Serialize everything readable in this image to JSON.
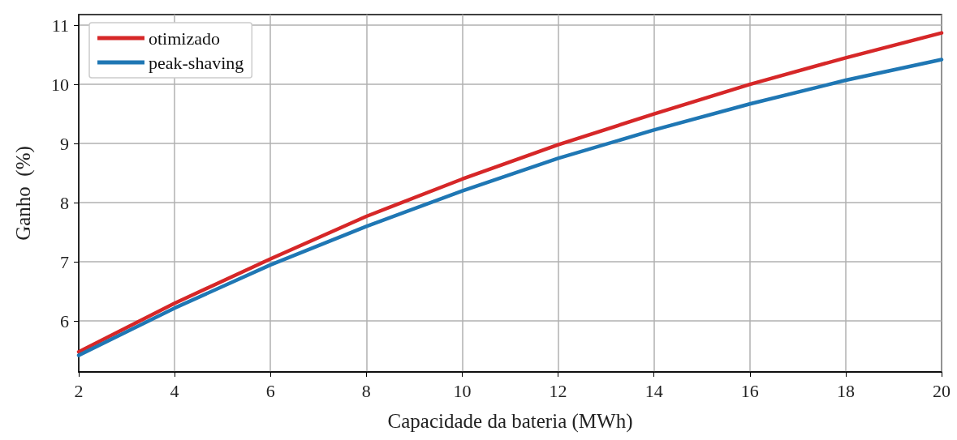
{
  "chart_data": {
    "type": "line",
    "xlabel": "Capacidade da bateria (MWh)",
    "ylabel": "Ganho  (%)",
    "x": [
      2,
      4,
      6,
      8,
      10,
      12,
      14,
      16,
      18,
      20
    ],
    "series": [
      {
        "name": "otimizado",
        "color": "#d62728",
        "values": [
          5.48,
          6.3,
          7.05,
          7.77,
          8.4,
          8.98,
          9.5,
          10.0,
          10.45,
          10.87
        ]
      },
      {
        "name": "peak-shaving",
        "color": "#1f77b4",
        "values": [
          5.42,
          6.22,
          6.95,
          7.6,
          8.2,
          8.75,
          9.23,
          9.67,
          10.07,
          10.42
        ]
      }
    ],
    "xlim": [
      2,
      20
    ],
    "xticks": [
      2,
      4,
      6,
      8,
      10,
      12,
      14,
      16,
      18,
      20
    ],
    "ylim": [
      5.14,
      11.18
    ],
    "yticks": [
      6,
      7,
      8,
      9,
      10,
      11
    ],
    "grid": true,
    "legend": "top left",
    "marker": "none",
    "line_style": "solid"
  }
}
